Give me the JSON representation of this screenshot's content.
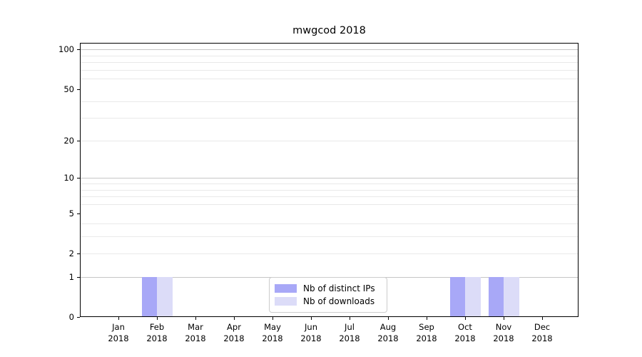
{
  "title": "mwgcod 2018",
  "chart_data": {
    "type": "bar",
    "title": "mwgcod 2018",
    "categories": [
      "Jan 2018",
      "Feb 2018",
      "Mar 2018",
      "Apr 2018",
      "May 2018",
      "Jun 2018",
      "Jul 2018",
      "Aug 2018",
      "Sep 2018",
      "Oct 2018",
      "Nov 2018",
      "Dec 2018"
    ],
    "series": [
      {
        "name": "Nb of distinct IPs",
        "color": "#a8a8f7",
        "values": [
          0,
          1,
          0,
          0,
          0,
          0,
          0,
          0,
          0,
          1,
          1,
          0
        ]
      },
      {
        "name": "Nb of downloads",
        "color": "#dcdcf8",
        "values": [
          0,
          1,
          0,
          0,
          0,
          0,
          0,
          0,
          0,
          1,
          1,
          0
        ]
      }
    ],
    "xlabel": "",
    "ylabel": "",
    "yscale": "log1p",
    "yticks": [
      0,
      1,
      2,
      5,
      10,
      20,
      50,
      100
    ],
    "minor_gridlines": [
      2,
      3,
      4,
      6,
      7,
      8,
      9,
      20,
      30,
      40,
      60,
      70,
      80,
      90
    ],
    "major_gridlines": [
      1,
      10,
      100
    ],
    "ylim": [
      0,
      112
    ],
    "grid": "horizontal",
    "legend_position": "lower-center-inside",
    "colors": {
      "axis": "#000000",
      "grid_major": "#c6c6c6",
      "grid_minor": "#e9e9e9",
      "legend_border": "#cccccc",
      "background": "#ffffff"
    }
  }
}
